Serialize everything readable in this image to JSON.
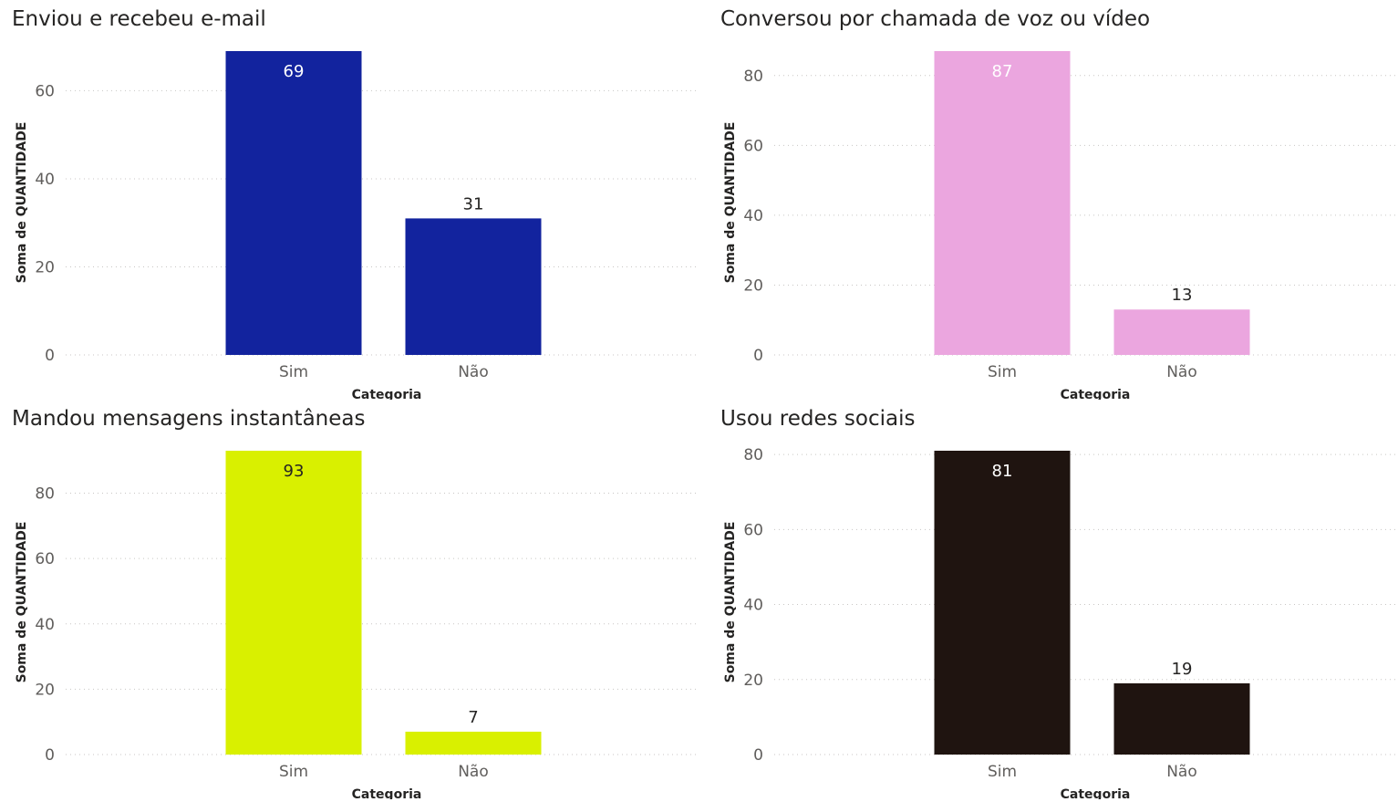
{
  "chart_data": [
    {
      "type": "bar",
      "title": "Enviou e recebeu e-mail",
      "xlabel": "Categoria",
      "ylabel": "Soma de QUANTIDADE",
      "categories": [
        "Sim",
        "Não"
      ],
      "values": [
        69,
        31
      ],
      "ylim": [
        0,
        69
      ],
      "yticks": [
        0,
        20,
        40,
        60
      ],
      "color": "#12239e",
      "label_colors": [
        "#ffffff",
        "#252423"
      ],
      "grid": true
    },
    {
      "type": "bar",
      "title": "Conversou por chamada de voz ou vídeo",
      "xlabel": "Categoria",
      "ylabel": "Soma de QUANTIDADE",
      "categories": [
        "Sim",
        "Não"
      ],
      "values": [
        87,
        13
      ],
      "ylim": [
        0,
        87
      ],
      "yticks": [
        0,
        20,
        40,
        60,
        80
      ],
      "color": "#eba6df",
      "label_colors": [
        "#ffffff",
        "#252423"
      ],
      "grid": true
    },
    {
      "type": "bar",
      "title": "Mandou mensagens instantâneas",
      "xlabel": "Categoria",
      "ylabel": "Soma de QUANTIDADE",
      "categories": [
        "Sim",
        "Não"
      ],
      "values": [
        93,
        7
      ],
      "ylim": [
        0,
        93
      ],
      "yticks": [
        0,
        20,
        40,
        60,
        80
      ],
      "color": "#d9f000",
      "label_colors": [
        "#252423",
        "#252423"
      ],
      "grid": true
    },
    {
      "type": "bar",
      "title": "Usou redes sociais",
      "xlabel": "Categoria",
      "ylabel": "Soma de QUANTIDADE",
      "categories": [
        "Sim",
        "Não"
      ],
      "values": [
        81,
        19
      ],
      "ylim": [
        0,
        81
      ],
      "yticks": [
        0,
        20,
        40,
        60,
        80
      ],
      "color": "#1f1410",
      "label_colors": [
        "#ffffff",
        "#252423"
      ],
      "grid": true
    }
  ]
}
